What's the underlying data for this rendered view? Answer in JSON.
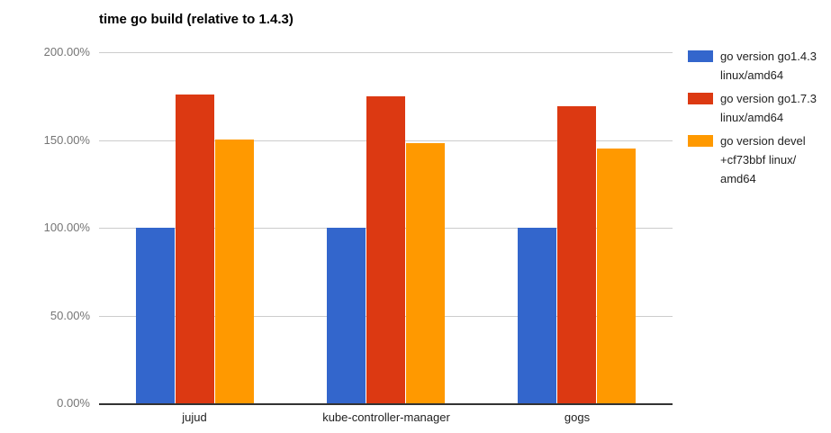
{
  "chart_data": {
    "type": "bar",
    "title": "time go build (relative to 1.4.3)",
    "xlabel": "",
    "ylabel": "",
    "ylim": [
      0,
      200
    ],
    "grid": true,
    "legend_position": "right",
    "categories": [
      "jujud",
      "kube-controller-manager",
      "gogs"
    ],
    "series": [
      {
        "name": "go version go1.4.3 linux/amd64",
        "color": "#3366cc",
        "values": [
          100,
          100,
          100
        ],
        "legend_lines": [
          "go version go1.4.3",
          "linux/amd64"
        ]
      },
      {
        "name": "go version go1.7.3 linux/amd64",
        "color": "#dc3912",
        "values": [
          176,
          175,
          169
        ],
        "legend_lines": [
          "go version go1.7.3",
          "linux/amd64"
        ]
      },
      {
        "name": "go version devel +cf73bbf linux/amd64",
        "color": "#ff9900",
        "values": [
          150,
          148,
          145
        ],
        "legend_lines": [
          "go version devel",
          "+cf73bbf linux/",
          "amd64"
        ]
      }
    ],
    "yticks": [
      {
        "label": "200.00%",
        "value": 200
      },
      {
        "label": "150.00%",
        "value": 150
      },
      {
        "label": "100.00%",
        "value": 100
      },
      {
        "label": "50.00%",
        "value": 50
      },
      {
        "label": "0.00%",
        "value": 0
      }
    ],
    "unit": "percent"
  },
  "colors": {
    "background": "#ffffff",
    "gridline": "#cccccc",
    "axis_line": "#333333",
    "title_text": "#000000",
    "y_tick_text": "#757575",
    "x_label_text": "#212121",
    "legend_text": "#222222"
  }
}
